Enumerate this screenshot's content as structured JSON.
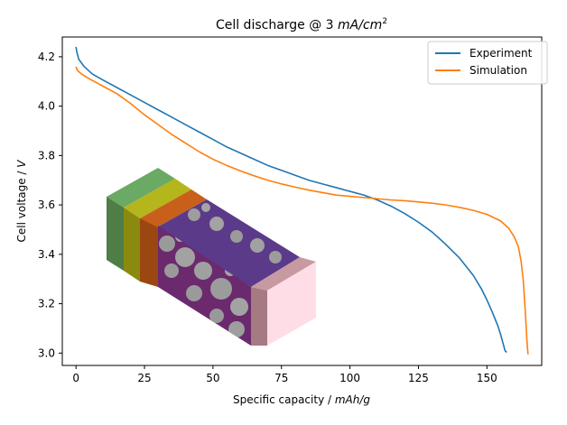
{
  "chart_data": {
    "type": "line",
    "title_prefix": "Cell discharge @ 3 ",
    "title_unit": "mA/cm",
    "title_exp": "2",
    "xlabel_prefix": "Specific capacity / ",
    "xlabel_unit": "mAh/g",
    "ylabel_prefix": "Cell voltage / ",
    "ylabel_unit": "V",
    "xlim": [
      -5,
      170
    ],
    "ylim": [
      2.95,
      4.28
    ],
    "xticks": [
      0,
      25,
      50,
      75,
      100,
      125,
      150
    ],
    "yticks": [
      3.0,
      3.2,
      3.4,
      3.6,
      3.8,
      4.0,
      4.2
    ],
    "xtick_labels": [
      "0",
      "25",
      "50",
      "75",
      "100",
      "125",
      "150"
    ],
    "ytick_labels": [
      "3.0",
      "3.2",
      "3.4",
      "3.6",
      "3.8",
      "4.0",
      "4.2"
    ],
    "legend_position": "top-right",
    "inset_illustration": "3D electrode microstructure block (layered cell)",
    "series": [
      {
        "name": "Experiment",
        "color": "#1f77b4",
        "x": [
          0,
          0.3,
          1,
          3,
          6,
          10,
          15,
          20,
          25,
          30,
          35,
          40,
          45,
          50,
          55,
          60,
          65,
          70,
          75,
          80,
          85,
          90,
          95,
          100,
          105,
          110,
          115,
          120,
          125,
          130,
          135,
          140,
          145,
          148,
          150,
          152,
          154,
          155,
          156,
          156.6,
          157,
          157.3
        ],
        "y": [
          4.24,
          4.22,
          4.19,
          4.16,
          4.13,
          4.105,
          4.075,
          4.045,
          4.015,
          3.985,
          3.955,
          3.925,
          3.895,
          3.865,
          3.835,
          3.81,
          3.785,
          3.76,
          3.74,
          3.72,
          3.7,
          3.685,
          3.67,
          3.655,
          3.64,
          3.62,
          3.595,
          3.565,
          3.53,
          3.49,
          3.44,
          3.385,
          3.315,
          3.26,
          3.215,
          3.165,
          3.11,
          3.075,
          3.035,
          3.01,
          3.005,
          3.005
        ]
      },
      {
        "name": "Simulation",
        "color": "#ff7f0e",
        "x": [
          0,
          0.5,
          2,
          5,
          10,
          15,
          20,
          25,
          30,
          35,
          40,
          45,
          50,
          55,
          60,
          65,
          70,
          75,
          80,
          85,
          90,
          95,
          100,
          105,
          110,
          115,
          120,
          125,
          130,
          135,
          140,
          145,
          150,
          155,
          158,
          160,
          161.5,
          162.5,
          163.3,
          164,
          164.6,
          165
        ],
        "y": [
          4.16,
          4.145,
          4.13,
          4.11,
          4.08,
          4.05,
          4.01,
          3.965,
          3.925,
          3.885,
          3.85,
          3.815,
          3.785,
          3.76,
          3.738,
          3.718,
          3.7,
          3.685,
          3.672,
          3.66,
          3.65,
          3.64,
          3.635,
          3.63,
          3.625,
          3.62,
          3.617,
          3.612,
          3.607,
          3.6,
          3.59,
          3.578,
          3.562,
          3.535,
          3.505,
          3.47,
          3.43,
          3.37,
          3.29,
          3.17,
          3.05,
          2.995
        ]
      }
    ]
  }
}
